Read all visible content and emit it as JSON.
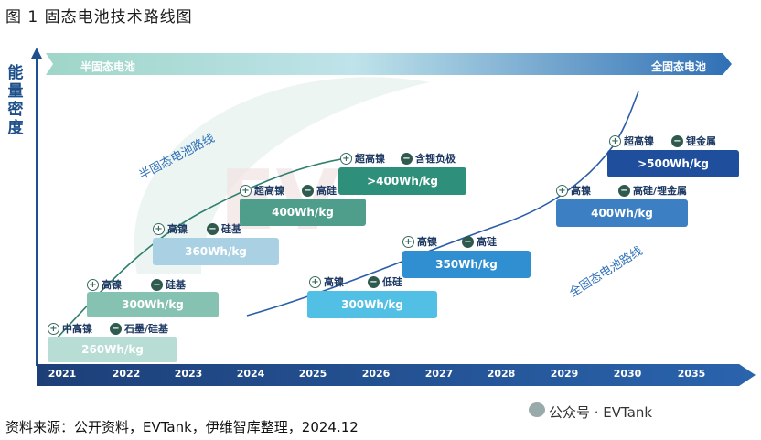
{
  "title": "图 1 固态电池技术路线图",
  "y_axis_label": "能量密度",
  "banner": {
    "left": "半固态电池",
    "right": "全固态电池"
  },
  "years": [
    "2021",
    "2022",
    "2023",
    "2024",
    "2025",
    "2026",
    "2027",
    "2028",
    "2029",
    "2030",
    "2035"
  ],
  "semi_label": "半固态电池路线",
  "full_label": "全固态电池路线",
  "semi_boxes": [
    {
      "value": "260Wh/kg",
      "plus": "中高镍",
      "minus": "石墨/硅基"
    },
    {
      "value": "300Wh/kg",
      "plus": "高镍",
      "minus": "硅基"
    },
    {
      "value": "360Wh/kg",
      "plus": "高镍",
      "minus": "硅基"
    },
    {
      "value": "400Wh/kg",
      "plus": "超高镍",
      "minus": "高硅"
    },
    {
      "value": ">400Wh/kg",
      "plus": "超高镍",
      "minus": "含锂负极"
    }
  ],
  "full_boxes": [
    {
      "value": "300Wh/kg",
      "plus": "高镍",
      "minus": "低硅"
    },
    {
      "value": "350Wh/kg",
      "plus": "高镍",
      "minus": "高硅"
    },
    {
      "value": "400Wh/kg",
      "plus": "高镍",
      "minus": "高硅/锂金属"
    },
    {
      "value": ">500Wh/kg",
      "plus": "超高镍",
      "minus": "锂金属"
    }
  ],
  "source": "资料来源：公开资料，EVTank，伊维智库整理，2024.12",
  "watermark": "公众号 · EVTank",
  "colors": {
    "navy": "#1f4f8f",
    "teal": "#2f8f7a",
    "light_teal": "#8cc7b7",
    "sky": "#4fb7e0",
    "blue": "#2b6fb8"
  }
}
